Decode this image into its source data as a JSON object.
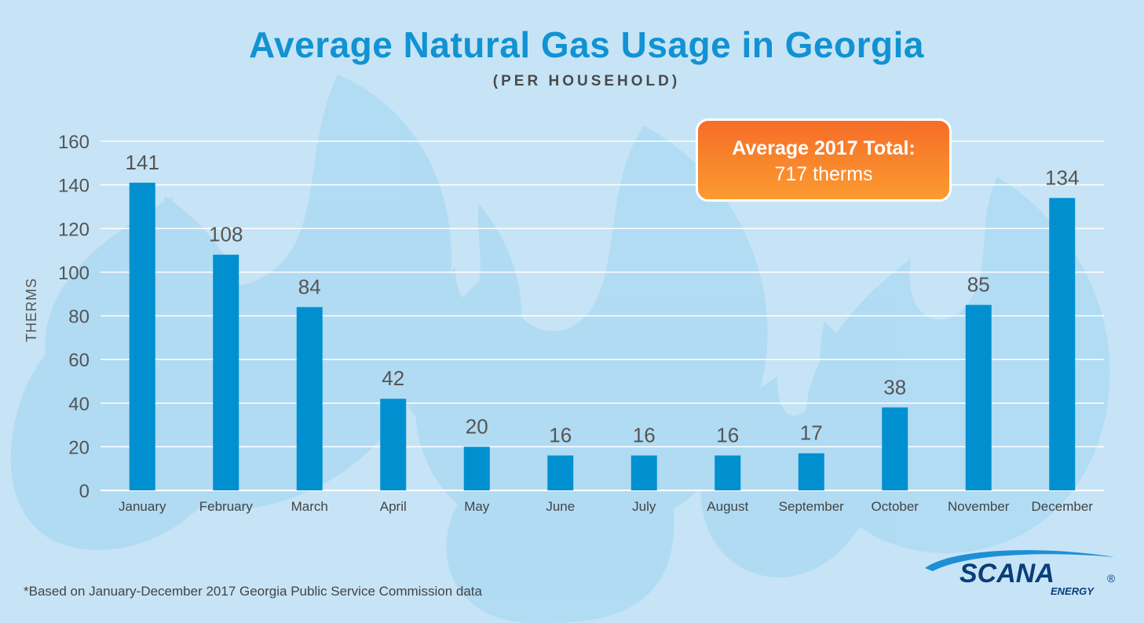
{
  "colors": {
    "background": "#c6e4f5",
    "flame": "#a9d9f3",
    "bar": "#0090d0",
    "title": "#1192d3",
    "callout_top": "#f66d28",
    "callout_bottom": "#fb9b30",
    "logo": "#0a3d7a"
  },
  "header": {
    "title": "Average Natural Gas Usage in Georgia",
    "subtitle": "(PER HOUSEHOLD)"
  },
  "callout": {
    "title": "Average 2017 Total:",
    "value": "717 therms"
  },
  "footnote": "*Based on January-December 2017 Georgia Public Service Commission data",
  "logo": {
    "name": "SCANA",
    "sub": "ENERGY",
    "mark": "®"
  },
  "chart_data": {
    "type": "bar",
    "title": "Average Natural Gas Usage in Georgia",
    "subtitle": "(PER HOUSEHOLD)",
    "xlabel": "",
    "ylabel": "THERMS",
    "ylim": [
      0,
      160
    ],
    "yticks": [
      0,
      20,
      40,
      60,
      80,
      100,
      120,
      140,
      160
    ],
    "grid": true,
    "categories": [
      "January",
      "February",
      "March",
      "April",
      "May",
      "June",
      "July",
      "August",
      "September",
      "October",
      "November",
      "December"
    ],
    "values": [
      141,
      108,
      84,
      42,
      20,
      16,
      16,
      16,
      17,
      38,
      85,
      134
    ],
    "value_labels": [
      "141",
      "108",
      "84",
      "42",
      "20",
      "16",
      "16",
      "16",
      "17",
      "38",
      "85",
      "134"
    ]
  }
}
